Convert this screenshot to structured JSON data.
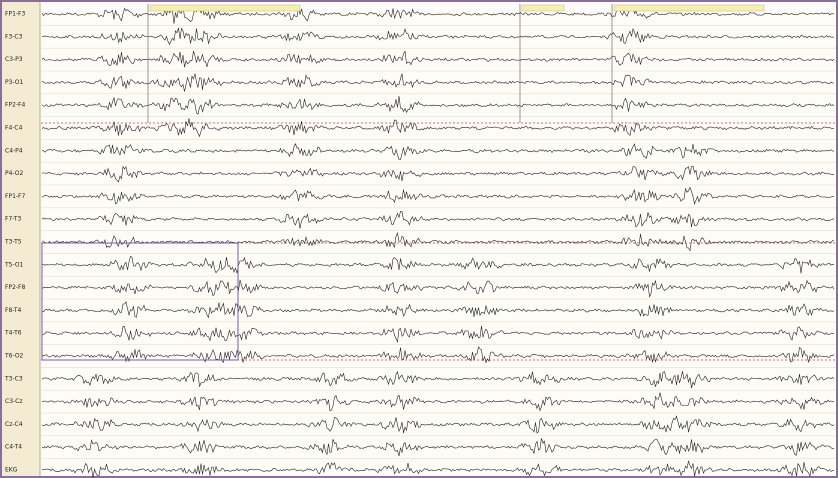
{
  "channels": [
    "FP1-F3",
    "F3-C3",
    "C3-P3",
    "P3-O1",
    "FP2-F4",
    "F4-C4",
    "C4-P4",
    "P4-O2",
    "FP1-F7",
    "F7-T3",
    "T3-T5",
    "T5-O1",
    "FP2-F8",
    "F8-T4",
    "T4-T6",
    "T6-O2",
    "T3-C3",
    "C3-Cz",
    "Cz-C4",
    "C4-T4",
    "EKG"
  ]
}
